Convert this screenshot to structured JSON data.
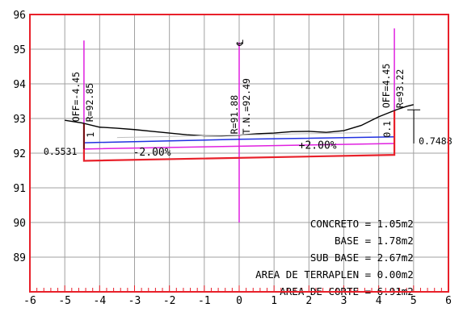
{
  "chart_data": {
    "type": "line",
    "xlim": [
      -6,
      6
    ],
    "ylim": [
      88,
      96
    ],
    "x_ticks": [
      "-6",
      "-5",
      "-4",
      "-3",
      "-2",
      "-1",
      "0",
      "1",
      "2",
      "3",
      "4",
      "5",
      "6"
    ],
    "y_ticks": [
      "89",
      "90",
      "91",
      "92",
      "93",
      "94",
      "95",
      "96"
    ],
    "grid": true,
    "colors": {
      "frame": "#e8202a",
      "grid": "#a0a0a0",
      "terrain": "#000000",
      "subgrade": "#e8202a",
      "pavement": "#2030e0",
      "offset_lines": "#e020e0",
      "base_line": "#e020e0"
    },
    "series": [
      {
        "key": "terrain",
        "x": [
          -5.0,
          -4.5,
          -4.0,
          -3.5,
          -3.0,
          -2.5,
          -2.0,
          -1.5,
          -1.0,
          -0.5,
          0.0,
          0.5,
          1.0,
          1.5,
          2.0,
          2.5,
          3.0,
          3.5,
          4.0,
          4.5,
          4.8,
          5.0
        ],
        "y": [
          92.95,
          92.87,
          92.75,
          92.72,
          92.68,
          92.63,
          92.58,
          92.53,
          92.5,
          92.5,
          92.52,
          92.56,
          92.58,
          92.62,
          92.63,
          92.6,
          92.65,
          92.8,
          93.05,
          93.25,
          93.35,
          93.4
        ]
      },
      {
        "key": "pavement_top",
        "x": [
          -4.45,
          0.0,
          4.45
        ],
        "y": [
          92.3,
          92.4,
          92.47
        ]
      },
      {
        "key": "base_line",
        "x": [
          -4.45,
          0.0,
          4.45
        ],
        "y": [
          92.12,
          92.2,
          92.28
        ]
      },
      {
        "key": "subgrade_box",
        "x": [
          -4.45,
          -4.45,
          4.45,
          4.45
        ],
        "y": [
          92.85,
          91.78,
          91.95,
          93.22
        ]
      }
    ],
    "offset_lines": [
      {
        "key": "left",
        "x": -4.45,
        "y": [
          91.8,
          95.25
        ]
      },
      {
        "key": "center",
        "x": 0.0,
        "y": [
          90.0,
          95.2
        ]
      },
      {
        "key": "right",
        "x": 4.45,
        "y": [
          91.95,
          95.6
        ]
      }
    ],
    "annotations": {
      "off_left": "OFF=-4.45",
      "r_left": "R=92.85",
      "r_center": "R=91.88",
      "tn_center": "T.N.=92.49",
      "off_right": "OFF=4.45",
      "r_right": "R=93.22",
      "centerline_mark": "℄",
      "slope_left": "-2.00%",
      "slope_right": "+2.00%",
      "thk_left_value": "0.5531",
      "thk_left_label": "1",
      "thk_right_value": "0.7488",
      "thk_right_label": "0.1"
    },
    "quantities": [
      "CONCRETO = 1.05m2",
      "BASE = 1.78m2",
      "SUB BASE = 2.67m2",
      "AREA DE TERRAPLEN = 0.00m2",
      "AREA DE CORTE = 6.91m2"
    ]
  }
}
